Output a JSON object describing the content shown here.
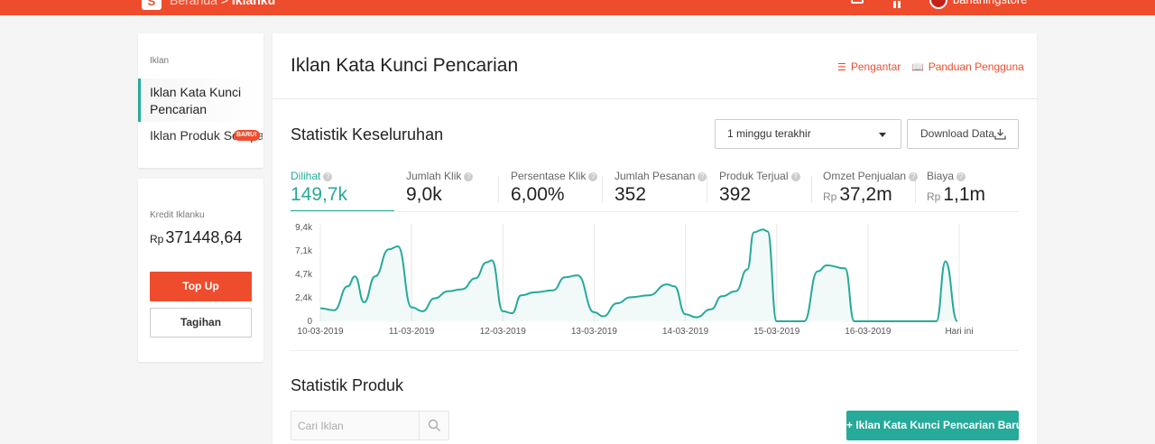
{
  "topbar": {
    "logo": "S",
    "breadcrumb_home": "Beranda",
    "breadcrumb_sep": ">",
    "breadcrumb_current": "Iklanku",
    "username": "bananingstore"
  },
  "sidebar": {
    "section_title": "Iklan",
    "items": [
      {
        "label": "Iklan Kata Kunci Pencarian",
        "active": true
      },
      {
        "label": "Iklan Produk Serupa",
        "active": false
      }
    ],
    "new_badge": "BARU!",
    "credit_label": "Kredit Iklanku",
    "credit_currency": "Rp",
    "credit_value": "371448,64",
    "topup_label": "Top Up",
    "tagihan_label": "Tagihan"
  },
  "main": {
    "title": "Iklan Kata Kunci Pencarian",
    "link_intro": "Pengantar",
    "link_guide": "Panduan Pengguna",
    "overview_title": "Statistik Keseluruhan",
    "period": "1 minggu terakhir",
    "download_label": "Download Data",
    "product_title": "Statistik Produk",
    "search_placeholder": "Cari Iklan",
    "new_ad_label": "+ Iklan Kata Kunci Pencarian Baru"
  },
  "metrics": [
    {
      "label": "Dilihat",
      "value": "149,7k",
      "prefix": "",
      "active": true
    },
    {
      "label": "Jumlah Klik",
      "value": "9,0k",
      "prefix": ""
    },
    {
      "label": "Persentase Klik",
      "value": "6,00%",
      "prefix": ""
    },
    {
      "label": "Jumlah Pesanan",
      "value": "352",
      "prefix": ""
    },
    {
      "label": "Produk Terjual",
      "value": "392",
      "prefix": ""
    },
    {
      "label": "Omzet Penjualan",
      "value": "37,2m",
      "prefix": "Rp"
    },
    {
      "label": "Biaya",
      "value": "1,1m",
      "prefix": "Rp"
    }
  ],
  "colors": {
    "brand": "#ee4d2d",
    "accent": "#26aa99"
  },
  "chart_data": {
    "type": "line",
    "series_color": "#26aa99",
    "y_ticks": [
      "0",
      "2,4k",
      "4,7k",
      "7,1k",
      "9,4k"
    ],
    "ylim": [
      0,
      9.4
    ],
    "x_ticks": [
      "10-03-2019",
      "11-03-2019",
      "12-03-2019",
      "13-03-2019",
      "14-03-2019",
      "15-03-2019",
      "16-03-2019",
      "Hari ini"
    ],
    "x_range": [
      0,
      7
    ],
    "grid": "vertical",
    "series": [
      {
        "unit": "k",
        "points": [
          [
            0.0,
            1.3
          ],
          [
            0.15,
            1.1
          ],
          [
            0.3,
            3.5
          ],
          [
            0.38,
            4.5
          ],
          [
            0.48,
            1.9
          ],
          [
            0.6,
            4.5
          ],
          [
            0.75,
            7.2
          ],
          [
            0.85,
            7.5
          ],
          [
            1.0,
            1.4
          ],
          [
            1.12,
            1.0
          ],
          [
            1.25,
            2.3
          ],
          [
            1.4,
            3.0
          ],
          [
            1.55,
            3.2
          ],
          [
            1.7,
            4.3
          ],
          [
            1.82,
            5.9
          ],
          [
            1.88,
            6.1
          ],
          [
            2.0,
            1.0
          ],
          [
            2.1,
            0.8
          ],
          [
            2.2,
            2.6
          ],
          [
            2.35,
            2.9
          ],
          [
            2.55,
            3.1
          ],
          [
            2.68,
            4.4
          ],
          [
            2.82,
            4.6
          ],
          [
            3.0,
            0.9
          ],
          [
            3.1,
            0.5
          ],
          [
            3.25,
            1.8
          ],
          [
            3.4,
            2.4
          ],
          [
            3.6,
            2.6
          ],
          [
            3.8,
            3.7
          ],
          [
            3.88,
            3.5
          ],
          [
            4.0,
            0.7
          ],
          [
            4.12,
            0.4
          ],
          [
            4.28,
            1.2
          ],
          [
            4.4,
            2.5
          ],
          [
            4.55,
            3.0
          ],
          [
            4.68,
            5.2
          ],
          [
            4.75,
            8.9
          ],
          [
            4.85,
            9.2
          ],
          [
            4.9,
            9.0
          ],
          [
            5.0,
            0.0
          ],
          [
            5.3,
            0.0
          ],
          [
            5.45,
            5.0
          ],
          [
            5.55,
            5.6
          ],
          [
            5.75,
            5.3
          ],
          [
            5.85,
            0.0
          ],
          [
            6.0,
            0.0
          ],
          [
            6.6,
            0.0
          ],
          [
            6.75,
            0.0
          ],
          [
            6.85,
            6.0
          ],
          [
            6.98,
            0.0
          ]
        ]
      }
    ]
  }
}
